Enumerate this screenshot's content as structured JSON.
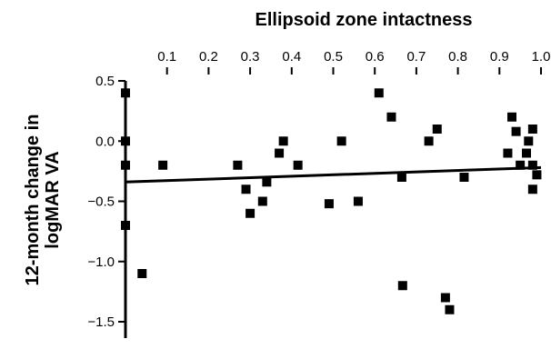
{
  "chart_data": {
    "type": "scatter",
    "title": "Ellipsoid zone intactness",
    "ylabel_lines": [
      "12-month change in",
      "logMAR VA"
    ],
    "xlim": [
      0,
      1.0
    ],
    "ylim": [
      -1.5,
      0.5
    ],
    "x_axis_position": "top",
    "x_ticks": [
      0.1,
      0.2,
      0.3,
      0.4,
      0.5,
      0.6,
      0.7,
      0.8,
      0.9,
      1.0
    ],
    "x_tick_labels": [
      "0.1",
      "0.2",
      "0.3",
      "0.4",
      "0.5",
      "0.6",
      "0.7",
      "0.8",
      "0.9",
      "1.0"
    ],
    "y_ticks": [
      0.5,
      0.0,
      -0.5,
      -1.0,
      -1.5
    ],
    "y_tick_labels": [
      "0.5",
      "0.0",
      "−0.5",
      "−1.0",
      "−1.5"
    ],
    "grid": false,
    "marker": "square",
    "color": "#000000",
    "points": [
      {
        "x": 0.0,
        "y": 0.4
      },
      {
        "x": 0.0,
        "y": 0.0
      },
      {
        "x": 0.0,
        "y": -0.2
      },
      {
        "x": 0.0,
        "y": -0.7
      },
      {
        "x": 0.04,
        "y": -1.1
      },
      {
        "x": 0.09,
        "y": -0.2
      },
      {
        "x": 0.27,
        "y": -0.2
      },
      {
        "x": 0.29,
        "y": -0.4
      },
      {
        "x": 0.3,
        "y": -0.6
      },
      {
        "x": 0.33,
        "y": -0.5
      },
      {
        "x": 0.34,
        "y": -0.34
      },
      {
        "x": 0.37,
        "y": -0.1
      },
      {
        "x": 0.38,
        "y": 0.0
      },
      {
        "x": 0.415,
        "y": -0.2
      },
      {
        "x": 0.49,
        "y": -0.52
      },
      {
        "x": 0.52,
        "y": 0.0
      },
      {
        "x": 0.56,
        "y": -0.5
      },
      {
        "x": 0.61,
        "y": 0.4
      },
      {
        "x": 0.64,
        "y": 0.2
      },
      {
        "x": 0.665,
        "y": -0.3
      },
      {
        "x": 0.667,
        "y": -1.2
      },
      {
        "x": 0.73,
        "y": 0.0
      },
      {
        "x": 0.75,
        "y": 0.1
      },
      {
        "x": 0.77,
        "y": -1.3
      },
      {
        "x": 0.78,
        "y": -1.4
      },
      {
        "x": 0.815,
        "y": -0.3
      },
      {
        "x": 0.92,
        "y": -0.1
      },
      {
        "x": 0.93,
        "y": 0.2
      },
      {
        "x": 0.94,
        "y": 0.08
      },
      {
        "x": 0.95,
        "y": -0.2
      },
      {
        "x": 0.965,
        "y": -0.1
      },
      {
        "x": 0.97,
        "y": 0.0
      },
      {
        "x": 0.98,
        "y": 0.1
      },
      {
        "x": 0.98,
        "y": -0.2
      },
      {
        "x": 0.98,
        "y": -0.4
      },
      {
        "x": 0.99,
        "y": -0.28
      }
    ],
    "trendline": {
      "x": [
        0.0,
        1.0
      ],
      "y": [
        -0.34,
        -0.22
      ]
    }
  }
}
